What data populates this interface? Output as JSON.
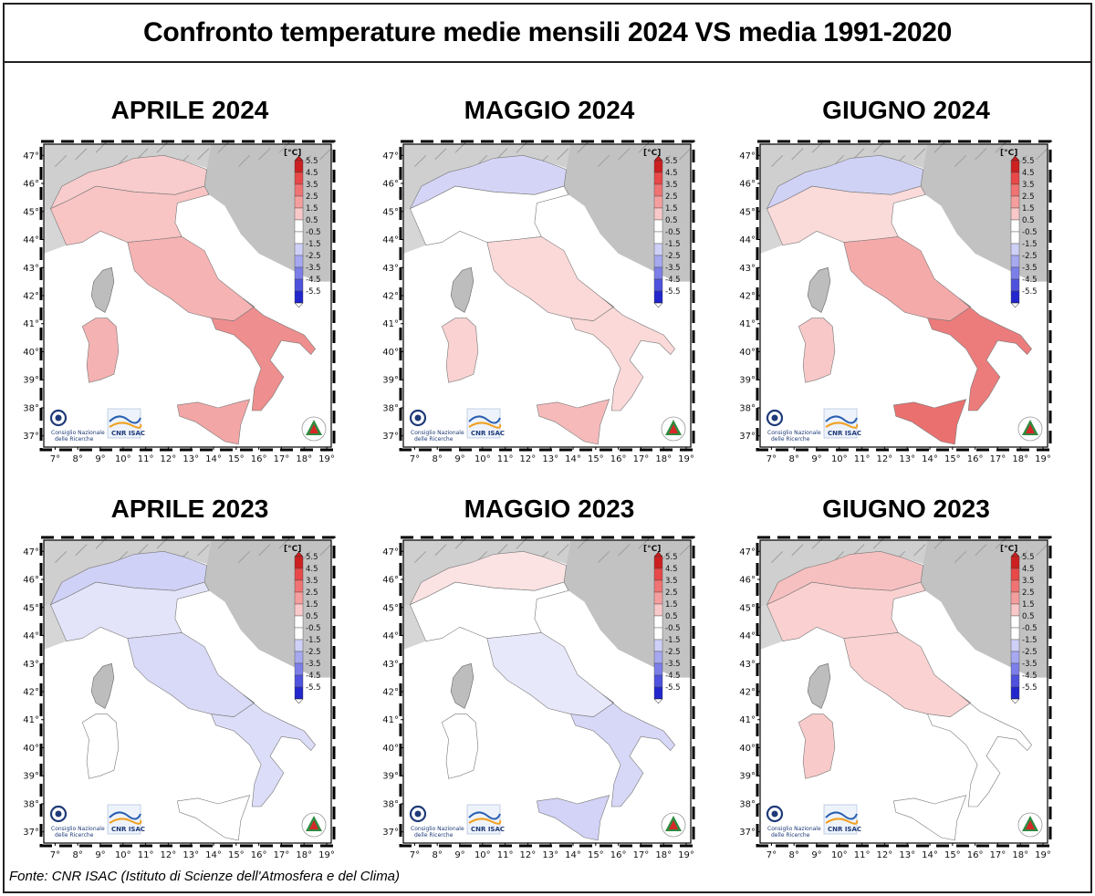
{
  "title": "Confronto temperature medie mensili 2024 VS media 1991-2020",
  "source": "Fonte: CNR ISAC (Istituto di Scienze dell'Atmosfera e del Clima)",
  "colorbar": {
    "unit": "[°C]",
    "labels": [
      "5.5",
      "4.5",
      "3.5",
      "2.5",
      "1.5",
      "0.5",
      "-0.5",
      "-1.5",
      "-2.5",
      "-3.5",
      "-4.5",
      "-5.5"
    ],
    "colors": [
      "#cc1f1f",
      "#e84848",
      "#f07373",
      "#f59e9e",
      "#f9c9c9",
      "#ffffff",
      "#ffffff",
      "#cfd0f7",
      "#a6a8f0",
      "#7c7fe8",
      "#4f52dd",
      "#2226cc"
    ]
  },
  "axes": {
    "lat_labels": [
      "47°",
      "46°",
      "45°",
      "44°",
      "43°",
      "42°",
      "41°",
      "40°",
      "39°",
      "38°",
      "37°"
    ],
    "lon_labels": [
      "7°",
      "8°",
      "9°",
      "10°",
      "11°",
      "12°",
      "13°",
      "14°",
      "15°",
      "16°",
      "17°",
      "18°",
      "19°"
    ]
  },
  "logos": {
    "cnr_line1": "Consiglio Nazionale",
    "cnr_line2": "delle Ricerche",
    "isac": "CNR ISAC"
  },
  "panels": [
    {
      "title": "APRILE 2024",
      "region_colors": {
        "north": "#f8c4c4",
        "center": "#f6b3b3",
        "south": "#ef8e8e",
        "sicily": "#f3a6a6",
        "sardinia": "#f5b2b2",
        "alps": "#f8cccc"
      }
    },
    {
      "title": "MAGGIO 2024",
      "region_colors": {
        "north": "#ffffff",
        "center": "#fbd9d9",
        "south": "#fbd9d9",
        "sicily": "#f6baba",
        "sardinia": "#fad2d2",
        "alps": "#d4d5f6"
      }
    },
    {
      "title": "GIUGNO 2024",
      "region_colors": {
        "north": "#fbdada",
        "center": "#f5aaaa",
        "south": "#ec7c7c",
        "sicily": "#ea7070",
        "sardinia": "#f8c8c8",
        "alps": "#d0d2f5"
      }
    },
    {
      "title": "APRILE 2023",
      "region_colors": {
        "north": "#e3e3fa",
        "center": "#d9daf7",
        "south": "#dcddf8",
        "sicily": "#ffffff",
        "sardinia": "#ffffff",
        "alps": "#d0d1f6"
      }
    },
    {
      "title": "MAGGIO 2023",
      "region_colors": {
        "north": "#ffffff",
        "center": "#e8e8fb",
        "south": "#d7d8f7",
        "sicily": "#d2d3f6",
        "sardinia": "#ffffff",
        "alps": "#fbe3e3"
      }
    },
    {
      "title": "GIUGNO 2023",
      "region_colors": {
        "north": "#fad0d0",
        "center": "#fad2d2",
        "south": "#ffffff",
        "sicily": "#ffffff",
        "sardinia": "#f9caca",
        "alps": "#f7c0c0"
      }
    }
  ]
}
